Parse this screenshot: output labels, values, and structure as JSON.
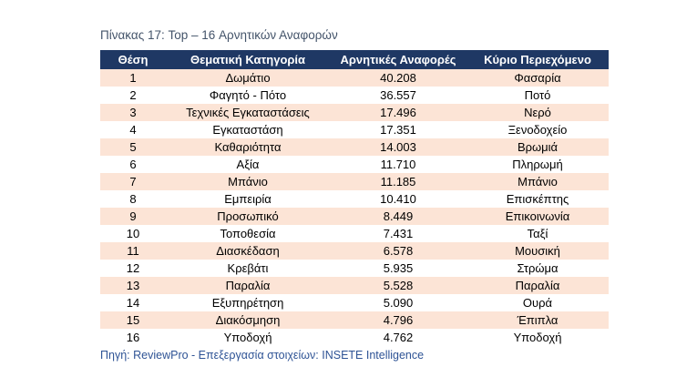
{
  "title": "Πίνακας 17: Top – 16 Αρνητικών Αναφορών",
  "colors": {
    "header_bg": "#1F3864",
    "header_text": "#FFFFFF",
    "row_alt_bg": "#FCE4D6",
    "row_bg": "#FFFFFF",
    "title_text": "#44546A",
    "footer_text": "#2E5395",
    "body_text": "#000000"
  },
  "table": {
    "headers": [
      "Θέση",
      "Θεματική Κατηγορία",
      "Αρνητικές Αναφορές",
      "Κύριο Περιεχόμενο"
    ],
    "rows": [
      [
        "1",
        "Δωμάτιο",
        "40.208",
        "Φασαρία"
      ],
      [
        "2",
        "Φαγητό - Πότο",
        "36.557",
        "Ποτό"
      ],
      [
        "3",
        "Τεχνικές Εγκαταστάσεις",
        "17.496",
        "Νερό"
      ],
      [
        "4",
        "Εγκαταστάση",
        "17.351",
        "Ξενοδοχείο"
      ],
      [
        "5",
        "Καθαριότητα",
        "14.003",
        "Βρωμιά"
      ],
      [
        "6",
        "Αξία",
        "11.710",
        "Πληρωμή"
      ],
      [
        "7",
        "Μπάνιο",
        "11.185",
        "Μπάνιο"
      ],
      [
        "8",
        "Εμπειρία",
        "10.410",
        "Επισκέπτης"
      ],
      [
        "9",
        "Προσωπικό",
        "8.449",
        "Επικοινωνία"
      ],
      [
        "10",
        "Τοποθεσία",
        "7.431",
        "Ταξί"
      ],
      [
        "11",
        "Διασκέδαση",
        "6.578",
        "Μουσική"
      ],
      [
        "12",
        "Κρεβάτι",
        "5.935",
        "Στρώμα"
      ],
      [
        "13",
        "Παραλία",
        "5.528",
        "Παραλία"
      ],
      [
        "14",
        "Εξυπηρέτηση",
        "5.090",
        "Ουρά"
      ],
      [
        "15",
        "Διακόσμηση",
        "4.796",
        "Έπιπλα"
      ],
      [
        "16",
        "Υποδοχή",
        "4.762",
        "Υποδοχή"
      ]
    ]
  },
  "footer": "Πηγή:  ReviewPro - Επεξεργασία στοιχείων: INSETE Intelligence"
}
